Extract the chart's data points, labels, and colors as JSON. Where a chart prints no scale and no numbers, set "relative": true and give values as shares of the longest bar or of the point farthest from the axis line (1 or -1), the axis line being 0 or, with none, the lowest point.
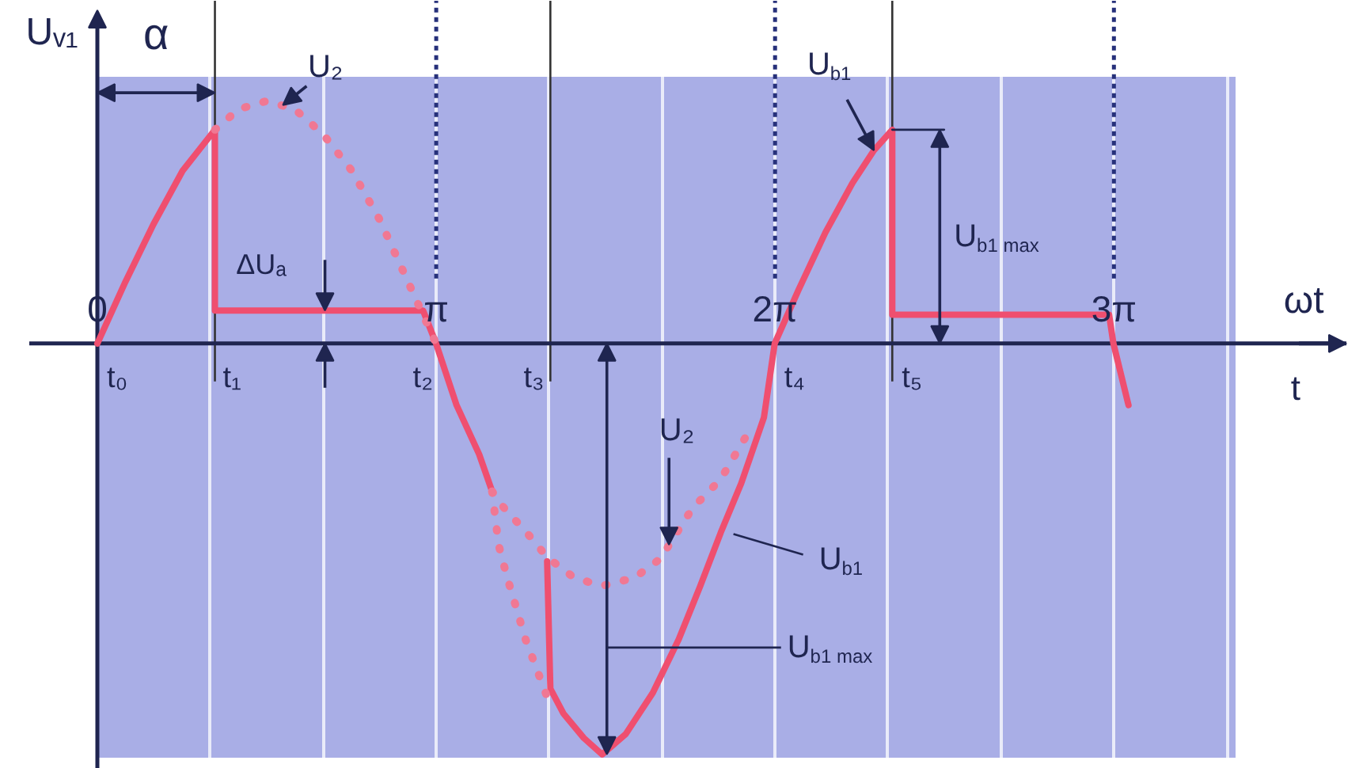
{
  "chart_data": {
    "type": "line",
    "relative": true,
    "xlabel": "ωt",
    "ylabel": "Uᵥ₁",
    "xlim": [
      0,
      11.58
    ],
    "xticks": [
      0,
      {
        "value": 1.0472,
        "label": null
      },
      {
        "value": 2.0944,
        "label": null
      },
      {
        "value": 3.1416,
        "label": "π"
      },
      {
        "value": 4.1888,
        "label": null
      },
      {
        "value": 5.236,
        "label": null
      },
      {
        "value": 6.2832,
        "label": "2π"
      },
      {
        "value": 7.3304,
        "label": null
      },
      {
        "value": 8.3776,
        "label": null
      },
      {
        "value": 9.4248,
        "label": "3π"
      },
      {
        "value": 10.472,
        "label": null
      }
    ],
    "grid": "x",
    "series": [
      {
        "color": "#ef4f6f",
        "line_style": "solid",
        "x": [
          0,
          0.26,
          0.52,
          0.79,
          1.09,
          1.09,
          3.02,
          3.14,
          3.33,
          3.54,
          3.66,
          3.9,
          4.17,
          4.2,
          4.32,
          4.51,
          4.68,
          4.9,
          5.15,
          5.39,
          5.59,
          5.78,
          5.97,
          6.18,
          6.28,
          6.5,
          6.75,
          7.0,
          7.2,
          7.37,
          7.37,
          9.38,
          9.42,
          9.56
        ],
        "values": [
          0,
          0.15,
          0.29,
          0.42,
          0.52,
          0.08,
          0.08,
          0,
          -0.15,
          -0.27,
          -0.36,
          null,
          -0.53,
          -0.84,
          -0.9,
          -0.96,
          -1.0,
          -0.95,
          -0.85,
          -0.72,
          -0.59,
          -0.46,
          -0.34,
          -0.18,
          0,
          0.13,
          0.27,
          0.39,
          0.47,
          0.52,
          0.07,
          0.07,
          0,
          -0.15
        ]
      },
      {
        "color": "#f07893",
        "line_style": "dotted",
        "x": [
          1.09,
          1.31,
          1.57,
          1.83,
          2.09,
          2.36,
          2.62,
          2.88,
          3.14,
          3.4,
          3.66,
          3.77,
          3.98,
          4.17,
          4.42,
          4.68,
          4.98,
          5.24,
          5.3,
          5.52,
          5.78,
          6.05
        ],
        "values": [
          0.52,
          0.57,
          0.59,
          0.57,
          0.51,
          0.42,
          0.3,
          0.15,
          0,
          null,
          -0.36,
          -0.4,
          -0.46,
          -0.52,
          -0.57,
          -0.59,
          -0.57,
          -0.52,
          -0.49,
          -0.4,
          -0.33,
          -0.21
        ]
      },
      {
        "color": "#f07893",
        "line_style": "dotted",
        "x": [
          3.66,
          3.72,
          3.8,
          3.88,
          3.97,
          4.07,
          4.17
        ],
        "values": [
          -0.36,
          -0.49,
          -0.57,
          -0.64,
          -0.72,
          -0.79,
          -0.86
        ]
      },
      {
        "color": "#1f2550",
        "line_style": "solid",
        "x": [
          7.37,
          7.85
        ],
        "values": [
          0.52,
          0.52
        ]
      }
    ],
    "ref_lines": [
      {
        "axis": "x",
        "value": 1.09,
        "color": "#333333",
        "line_style": "solid"
      },
      {
        "axis": "x",
        "value": 3.1416,
        "color": "#26307a",
        "line_style": "dotted"
      },
      {
        "axis": "x",
        "value": 4.2,
        "color": "#333333",
        "line_style": "solid"
      },
      {
        "axis": "x",
        "value": 6.2832,
        "color": "#26307a",
        "line_style": "dotted"
      },
      {
        "axis": "x",
        "value": 7.37,
        "color": "#333333",
        "line_style": "solid"
      },
      {
        "axis": "x",
        "value": 9.4248,
        "color": "#26307a",
        "line_style": "dotted"
      }
    ],
    "annotations": [
      {
        "text": "α",
        "x": 1.09,
        "y": 0.61
      },
      {
        "text": "U₂",
        "x": 1.72,
        "y": 0.58
      },
      {
        "text": "ΔUₐ",
        "x": 2.11,
        "y": 0.08
      },
      {
        "text": "U$_{b1}$",
        "x": 7.2,
        "y": 0.47
      },
      "U$_{b1 max}$",
      {
        "text": "U₂",
        "x": 5.3,
        "y": -0.49
      },
      {
        "text": "U$_{b1}$",
        "x": 5.78,
        "y": -0.46
      },
      "U$_{b1 max}$",
      {
        "text": "t₀",
        "x": 0,
        "y": 0
      },
      {
        "text": "t₁",
        "x": 1.09,
        "y": 0
      },
      {
        "text": "t₂",
        "x": 3.02,
        "y": 0.08
      },
      {
        "text": "t₃",
        "x": 4.2,
        "y": 0
      },
      {
        "text": "t₄",
        "x": 6.28,
        "y": 0
      },
      {
        "text": "t₅",
        "x": 7.37,
        "y": 0
      },
      "t"
    ]
  }
}
